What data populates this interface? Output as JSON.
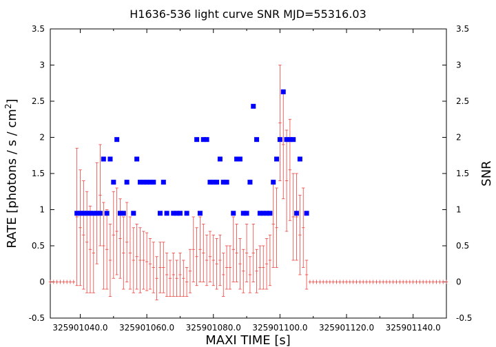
{
  "chart_data": {
    "type": "scatter",
    "title": "H1636-536 light curve  SNR MJD=55316.03",
    "xlabel": "MAXI TIME [s]",
    "ylabel_left": "RATE [photons / s / cm",
    "ylabel_left_sup": "2",
    "ylabel_left_tail": "]",
    "ylabel_right": "SNR",
    "xlim": [
      325901031.0,
      325901150.0
    ],
    "ylim": [
      -0.5,
      3.5
    ],
    "x_ticks": [
      325901040.0,
      325901060.0,
      325901080.0,
      325901100.0,
      325901120.0,
      325901140.0
    ],
    "x_tick_labels": [
      "325901040.0",
      "325901060.0",
      "325901080.0",
      "325901100.0",
      "325901120.0",
      "325901140.0"
    ],
    "y_ticks": [
      -0.5,
      0,
      0.5,
      1,
      1.5,
      2,
      2.5,
      3,
      3.5
    ],
    "y_tick_labels": [
      "-0.5",
      "0",
      "0.5",
      "1",
      "1.5",
      "2",
      "2.5",
      "3",
      "3.5"
    ],
    "series": [
      {
        "color": "#e8413c",
        "x": [
          325901031,
          325901032,
          325901033,
          325901034,
          325901035,
          325901036,
          325901037,
          325901038,
          325901039,
          325901040,
          325901041,
          325901042,
          325901043,
          325901044,
          325901045,
          325901046,
          325901047,
          325901048,
          325901049,
          325901050,
          325901051,
          325901052,
          325901053,
          325901054,
          325901055,
          325901056,
          325901057,
          325901058,
          325901059,
          325901060,
          325901061,
          325901062,
          325901063,
          325901064,
          325901065,
          325901066,
          325901067,
          325901068,
          325901069,
          325901070,
          325901071,
          325901072,
          325901073,
          325901074,
          325901075,
          325901076,
          325901077,
          325901078,
          325901079,
          325901080,
          325901081,
          325901082,
          325901083,
          325901084,
          325901085,
          325901086,
          325901087,
          325901088,
          325901089,
          325901090,
          325901091,
          325901092,
          325901093,
          325901094,
          325901095,
          325901096,
          325901097,
          325901098,
          325901099,
          325901100,
          325901101,
          325901102,
          325901103,
          325901104,
          325901105,
          325901106,
          325901107,
          325901108,
          325901109,
          325901110,
          325901111,
          325901112,
          325901113,
          325901114,
          325901115,
          325901116,
          325901117,
          325901118,
          325901119,
          325901120,
          325901121,
          325901122,
          325901123,
          325901124,
          325901125,
          325901126,
          325901127,
          325901128,
          325901129,
          325901130,
          325901131,
          325901132,
          325901133,
          325901134,
          325901135,
          325901136,
          325901137,
          325901138,
          325901139,
          325901140,
          325901141,
          325901142,
          325901143,
          325901144,
          325901145,
          325901146,
          325901147,
          325901148,
          325901149,
          325901150
        ],
        "y": [
          0,
          0,
          0,
          0,
          0,
          0,
          0,
          0,
          0.9,
          0.75,
          0.65,
          0.55,
          0.45,
          0.4,
          0.95,
          1.2,
          0.5,
          0.45,
          0.3,
          0.65,
          0.7,
          0.6,
          0.4,
          0.55,
          0.4,
          0.3,
          0.35,
          0.3,
          0.3,
          0.28,
          0.25,
          0.2,
          0.05,
          0.2,
          0.2,
          0.1,
          0.05,
          0.1,
          0.05,
          0.1,
          0.05,
          0,
          0.15,
          0.45,
          0.35,
          0.45,
          0.4,
          0.3,
          0.35,
          0.3,
          0.25,
          0.3,
          0.1,
          0.2,
          0.2,
          0.45,
          0.4,
          0.25,
          0.15,
          0.4,
          0.1,
          0.4,
          0.15,
          0.2,
          0.2,
          0.25,
          0.3,
          0.8,
          0.75,
          2.2,
          1.9,
          1.4,
          1.55,
          0.9,
          0.9,
          0.65,
          0.75,
          0.1,
          0,
          0,
          0,
          0,
          0,
          0,
          0,
          0,
          0,
          0,
          0,
          0,
          0,
          0,
          0,
          0,
          0,
          0,
          0,
          0,
          0,
          0,
          0,
          0,
          0,
          0,
          0,
          0,
          0,
          0,
          0,
          0,
          0,
          0,
          0,
          0,
          0,
          0,
          0,
          0,
          0,
          0
        ],
        "err": [
          0,
          0,
          0,
          0,
          0,
          0,
          0,
          0,
          0.95,
          0.8,
          0.75,
          0.7,
          0.6,
          0.55,
          0.7,
          0.7,
          0.6,
          0.55,
          0.5,
          0.6,
          0.6,
          0.55,
          0.5,
          0.55,
          0.5,
          0.45,
          0.45,
          0.45,
          0.4,
          0.4,
          0.35,
          0.35,
          0.3,
          0.35,
          0.35,
          0.3,
          0.25,
          0.3,
          0.25,
          0.3,
          0.25,
          0.2,
          0.3,
          0.45,
          0.4,
          0.45,
          0.4,
          0.35,
          0.35,
          0.35,
          0.35,
          0.35,
          0.3,
          0.3,
          0.3,
          0.45,
          0.4,
          0.35,
          0.3,
          0.4,
          0.25,
          0.4,
          0.3,
          0.3,
          0.3,
          0.35,
          0.35,
          0.6,
          0.55,
          0.8,
          0.75,
          0.7,
          0.7,
          0.6,
          0.6,
          0.55,
          0.55,
          0.2,
          0,
          0,
          0,
          0,
          0,
          0,
          0,
          0,
          0,
          0,
          0,
          0,
          0,
          0,
          0,
          0,
          0,
          0,
          0,
          0,
          0,
          0,
          0,
          0,
          0,
          0,
          0,
          0,
          0,
          0,
          0,
          0,
          0,
          0,
          0,
          0,
          0,
          0,
          0,
          0,
          0,
          0
        ]
      },
      {
        "color": "#0000ff",
        "x": [
          325901039,
          325901040,
          325901041,
          325901042,
          325901043,
          325901044,
          325901045,
          325901046,
          325901047,
          325901048,
          325901049,
          325901050,
          325901051,
          325901052,
          325901053,
          325901054,
          325901056,
          325901057,
          325901058,
          325901059,
          325901060,
          325901061,
          325901062,
          325901064,
          325901065,
          325901066,
          325901068,
          325901069,
          325901070,
          325901072,
          325901075,
          325901076,
          325901077,
          325901078,
          325901079,
          325901080,
          325901081,
          325901082,
          325901083,
          325901084,
          325901086,
          325901087,
          325901088,
          325901089,
          325901090,
          325901091,
          325901092,
          325901093,
          325901094,
          325901095,
          325901096,
          325901097,
          325901098,
          325901099,
          325901100,
          325901101,
          325901102,
          325901103,
          325901104,
          325901105,
          325901106,
          325901108
        ],
        "y": [
          0.95,
          0.95,
          0.95,
          0.95,
          0.95,
          0.95,
          0.95,
          0.95,
          1.7,
          0.95,
          1.7,
          1.38,
          1.97,
          0.95,
          0.95,
          1.38,
          0.95,
          1.7,
          1.38,
          1.38,
          1.38,
          1.38,
          1.38,
          0.95,
          1.38,
          0.95,
          0.95,
          0.95,
          0.95,
          0.95,
          1.97,
          0.95,
          1.97,
          1.97,
          1.38,
          1.38,
          1.38,
          1.7,
          1.38,
          1.38,
          0.95,
          1.7,
          1.7,
          0.95,
          0.95,
          1.38,
          2.43,
          1.97,
          0.95,
          0.95,
          0.95,
          0.95,
          1.38,
          1.7,
          1.97,
          2.63,
          1.97,
          1.97,
          1.97,
          0.95,
          1.7,
          0.95
        ]
      }
    ]
  }
}
